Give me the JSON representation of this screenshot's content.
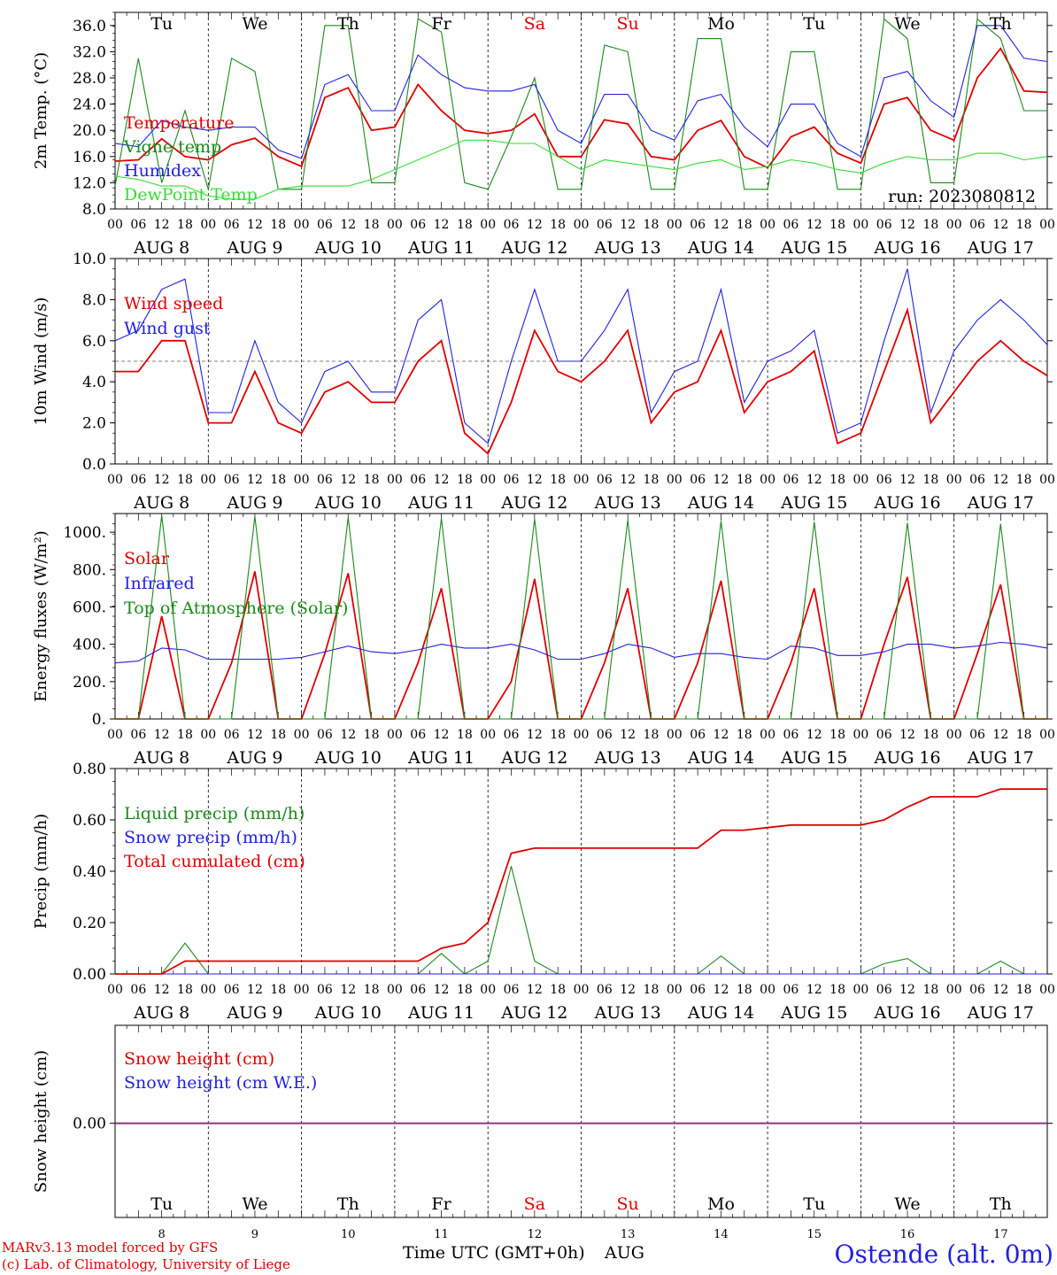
{
  "footer": {
    "model": "MARv3.13 model forced by GFS",
    "credit": "(c) Lab. of Climatology, University of Liege",
    "time_label": "Time UTC (GMT+0h)",
    "month": "AUG",
    "station": "Ostende (alt. 0m)"
  },
  "run_label": "run: 2023080812",
  "days": [
    "Tu",
    "We",
    "Th",
    "Fr",
    "Sa",
    "Su",
    "Mo",
    "Tu",
    "We",
    "Th"
  ],
  "weekend_days": [
    "Sa",
    "Su"
  ],
  "date_labels": [
    "AUG  8",
    "AUG  9",
    "AUG 10",
    "AUG 11",
    "AUG 12",
    "AUG 13",
    "AUG 14",
    "AUG 15",
    "AUG 16",
    "AUG 17"
  ],
  "day_numbers": [
    "8",
    "9",
    "10",
    "11",
    "12",
    "13",
    "14",
    "15",
    "16",
    "17"
  ],
  "hour_ticks": [
    "00",
    "06",
    "12",
    "18"
  ],
  "colors": {
    "red": "#e00000",
    "green": "#1a8a1a",
    "blue": "#2020e0",
    "lightgreen": "#33dd33",
    "purple": "#7a3aa0"
  },
  "chart_data": [
    {
      "type": "line",
      "ylabel": "2m Temp. (°C)",
      "ylim": [
        8.0,
        38.0
      ],
      "yticks": [
        "8.0",
        "12.0",
        "16.0",
        "20.0",
        "24.0",
        "28.0",
        "32.0",
        "36.0"
      ],
      "x_unit": "hours since AUG 8 00 UTC",
      "x": [
        0,
        6,
        12,
        18,
        24,
        30,
        36,
        42,
        48,
        54,
        60,
        66,
        72,
        78,
        84,
        90,
        96,
        102,
        108,
        114,
        120,
        126,
        132,
        138,
        144,
        150,
        156,
        162,
        168,
        174,
        180,
        186,
        192,
        198,
        204,
        210,
        216,
        222,
        228,
        234,
        240
      ],
      "series": [
        {
          "name": "Temperature",
          "color": "red",
          "values": [
            15.3,
            15.5,
            18.7,
            16,
            15.5,
            17.8,
            18.8,
            16,
            14.5,
            25,
            26.5,
            20,
            20.5,
            27,
            23,
            20,
            19.5,
            20,
            22.5,
            16,
            16,
            21.6,
            21,
            16,
            15.5,
            20,
            21.5,
            16,
            14.3,
            19,
            20.5,
            16.5,
            15,
            24,
            25,
            20,
            18.5,
            28,
            32.5,
            26,
            25.8
          ]
        },
        {
          "name": "Vigne temp",
          "color": "green",
          "values": [
            11.5,
            31,
            12,
            23,
            11,
            31,
            29,
            11,
            11,
            36,
            36,
            12,
            12,
            37,
            35,
            12,
            11,
            19,
            28,
            11,
            11,
            33,
            32,
            11,
            11,
            34,
            34,
            11,
            11,
            32,
            32,
            11,
            11,
            37,
            34,
            12,
            12,
            37,
            34,
            23,
            23
          ]
        },
        {
          "name": "Humidex",
          "color": "blue",
          "values": [
            18,
            17.5,
            21.5,
            20.5,
            20,
            20.5,
            20.5,
            17,
            15.7,
            27,
            28.5,
            23,
            23,
            31.5,
            28.5,
            26.5,
            26,
            26,
            27,
            20,
            18,
            25.5,
            25.5,
            20,
            18.5,
            24.5,
            25.5,
            20.5,
            17.5,
            24,
            24,
            18,
            16,
            28,
            29,
            24.5,
            22,
            36,
            36,
            31,
            30.5
          ]
        },
        {
          "name": "DewPoint Temp",
          "color": "lightgreen",
          "values": [
            13,
            12.5,
            11.5,
            11.5,
            10,
            9.5,
            9.5,
            11,
            11.5,
            11.5,
            11.5,
            12.5,
            14,
            15.5,
            17,
            18.5,
            18.5,
            18,
            18,
            16,
            14,
            15.5,
            15,
            14.5,
            14,
            15,
            15.5,
            14,
            14.5,
            15.5,
            15,
            14,
            13.5,
            15,
            16,
            15.5,
            15.5,
            16.5,
            16.5,
            15.5,
            16
          ]
        }
      ]
    },
    {
      "type": "line",
      "ylabel": "10m Wind (m/s)",
      "ylim": [
        0.0,
        10.0
      ],
      "yticks": [
        "0.0",
        "2.0",
        "4.0",
        "6.0",
        "8.0",
        "10.0"
      ],
      "reference_line": 5.0,
      "x": [
        0,
        6,
        12,
        18,
        24,
        30,
        36,
        42,
        48,
        54,
        60,
        66,
        72,
        78,
        84,
        90,
        96,
        102,
        108,
        114,
        120,
        126,
        132,
        138,
        144,
        150,
        156,
        162,
        168,
        174,
        180,
        186,
        192,
        198,
        204,
        210,
        216,
        222,
        228,
        234,
        240
      ],
      "series": [
        {
          "name": "Wind speed",
          "color": "red",
          "values": [
            4.5,
            4.5,
            6,
            6,
            2,
            2,
            4.5,
            2,
            1.5,
            3.5,
            4,
            3,
            3,
            5,
            6,
            1.5,
            0.5,
            3,
            6.5,
            4.5,
            4,
            5,
            6.5,
            2,
            3.5,
            4,
            6.5,
            2.5,
            4,
            4.5,
            5.5,
            1,
            1.5,
            4.5,
            7.5,
            2,
            3.5,
            5,
            6,
            5,
            4.3
          ]
        },
        {
          "name": "Wind gust",
          "color": "blue",
          "values": [
            6,
            6.5,
            8.5,
            9,
            2.5,
            2.5,
            6,
            3,
            2,
            4.5,
            5,
            3.5,
            3.5,
            7,
            8,
            2,
            1,
            5,
            8.5,
            5,
            5,
            6.5,
            8.5,
            2.5,
            4.5,
            5,
            8.5,
            3,
            5,
            5.5,
            6.5,
            1.5,
            2,
            6,
            9.5,
            2.5,
            5.5,
            7,
            8,
            7,
            5.8
          ]
        }
      ]
    },
    {
      "type": "line",
      "ylabel": "Energy fluxes (W/m²)",
      "ylim": [
        0,
        1100
      ],
      "yticks": [
        "0.",
        "200.",
        "400.",
        "600.",
        "800.",
        "1000."
      ],
      "x": [
        0,
        6,
        12,
        18,
        24,
        30,
        36,
        42,
        48,
        54,
        60,
        66,
        72,
        78,
        84,
        90,
        96,
        102,
        108,
        114,
        120,
        126,
        132,
        138,
        144,
        150,
        156,
        162,
        168,
        174,
        180,
        186,
        192,
        198,
        204,
        210,
        216,
        222,
        228,
        234,
        240
      ],
      "series": [
        {
          "name": "Solar",
          "color": "red",
          "values": [
            0,
            0,
            550,
            0,
            0,
            300,
            790,
            0,
            0,
            350,
            780,
            0,
            0,
            300,
            700,
            0,
            0,
            200,
            750,
            0,
            0,
            300,
            700,
            0,
            0,
            300,
            740,
            0,
            0,
            300,
            700,
            0,
            0,
            400,
            760,
            0,
            0,
            350,
            720,
            0,
            0
          ]
        },
        {
          "name": "Infrared",
          "color": "blue",
          "values": [
            300,
            310,
            380,
            370,
            320,
            320,
            320,
            320,
            330,
            360,
            390,
            360,
            350,
            370,
            400,
            380,
            380,
            400,
            370,
            320,
            320,
            350,
            400,
            380,
            330,
            350,
            350,
            330,
            320,
            390,
            380,
            340,
            340,
            360,
            400,
            400,
            380,
            390,
            410,
            400,
            380
          ]
        },
        {
          "name": "Top of Atmosphere (Solar)",
          "color": "green",
          "values": [
            0,
            0,
            1090,
            0,
            0,
            0,
            1085,
            0,
            0,
            0,
            1080,
            0,
            0,
            0,
            1075,
            0,
            0,
            0,
            1070,
            0,
            0,
            0,
            1065,
            0,
            0,
            0,
            1060,
            0,
            0,
            0,
            1055,
            0,
            0,
            0,
            1050,
            0,
            0,
            0,
            1045,
            0,
            0
          ]
        }
      ]
    },
    {
      "type": "line",
      "ylabel": "Precip (mm/h)",
      "ylim": [
        0.0,
        0.8
      ],
      "yticks": [
        "0.00",
        "0.20",
        "0.40",
        "0.60",
        "0.80"
      ],
      "x": [
        0,
        6,
        12,
        18,
        24,
        30,
        36,
        42,
        48,
        54,
        60,
        66,
        72,
        78,
        84,
        90,
        96,
        102,
        108,
        114,
        120,
        126,
        132,
        138,
        144,
        150,
        156,
        162,
        168,
        174,
        180,
        186,
        192,
        198,
        204,
        210,
        216,
        222,
        228,
        234,
        240
      ],
      "series": [
        {
          "name": "Liquid precip (mm/h)",
          "color": "green",
          "values": [
            0,
            0,
            0,
            0.12,
            0,
            0,
            0,
            0,
            0,
            0,
            0,
            0,
            0,
            0,
            0.08,
            0,
            0.05,
            0.42,
            0.05,
            0,
            0,
            0,
            0,
            0,
            0,
            0,
            0.07,
            0,
            0,
            0,
            0,
            0,
            0,
            0.04,
            0.06,
            0,
            0,
            0,
            0.05,
            0,
            0
          ]
        },
        {
          "name": "Snow precip (mm/h)",
          "color": "blue",
          "values": [
            0,
            0,
            0,
            0,
            0,
            0,
            0,
            0,
            0,
            0,
            0,
            0,
            0,
            0,
            0,
            0,
            0,
            0,
            0,
            0,
            0,
            0,
            0,
            0,
            0,
            0,
            0,
            0,
            0,
            0,
            0,
            0,
            0,
            0,
            0,
            0,
            0,
            0,
            0,
            0,
            0
          ]
        },
        {
          "name": "Total cumulated (cm)",
          "color": "red",
          "values": [
            0,
            0,
            0,
            0.05,
            0.05,
            0.05,
            0.05,
            0.05,
            0.05,
            0.05,
            0.05,
            0.05,
            0.05,
            0.05,
            0.1,
            0.12,
            0.2,
            0.47,
            0.49,
            0.49,
            0.49,
            0.49,
            0.49,
            0.49,
            0.49,
            0.49,
            0.56,
            0.56,
            0.57,
            0.58,
            0.58,
            0.58,
            0.58,
            0.6,
            0.65,
            0.69,
            0.69,
            0.69,
            0.72,
            0.72,
            0.72
          ]
        }
      ]
    },
    {
      "type": "line",
      "ylabel": "Snow height (cm)",
      "yticks": [
        "0.00"
      ],
      "x": [
        0,
        240
      ],
      "series": [
        {
          "name": "Snow height (cm)",
          "color": "red",
          "values": [
            0,
            0
          ]
        },
        {
          "name": "Snow height (cm W.E.)",
          "color": "blue",
          "values": [
            0,
            0
          ]
        }
      ]
    }
  ]
}
